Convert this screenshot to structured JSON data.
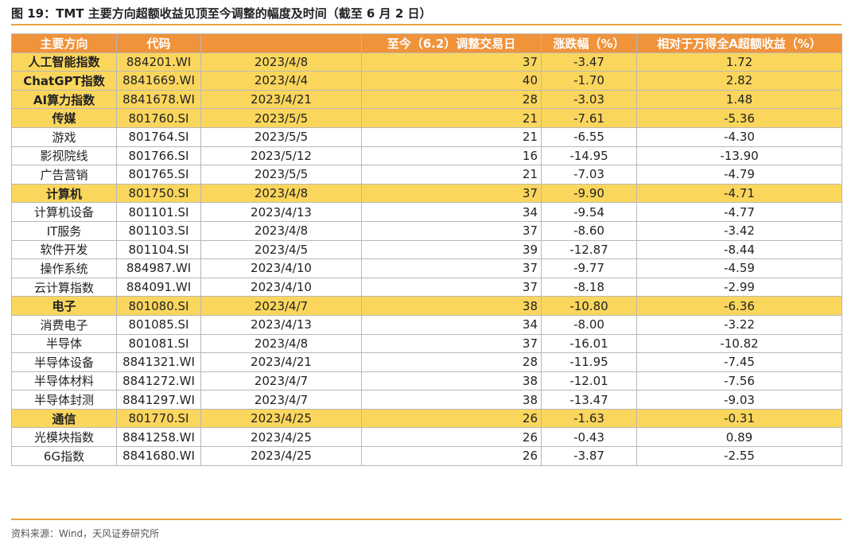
{
  "figure": {
    "title": "图 19：TMT 主要方向超额收益见顶至今调整的幅度及时间（截至 6 月 2 日）",
    "source": "资料来源：Wind，天风证券研究所"
  },
  "table": {
    "headers": [
      "主要方向",
      "代码",
      "",
      "至今（6.2）调整交易日",
      "涨跌幅（%）",
      "相对于万得全A超额收益（%）"
    ],
    "rows": [
      {
        "name": "人工智能指数",
        "code": "884201.WI",
        "date": "2023/4/8",
        "days": "37",
        "chg": "-3.47",
        "excess": "1.72",
        "group": true
      },
      {
        "name": "ChatGPT指数",
        "code": "8841669.WI",
        "date": "2023/4/4",
        "days": "40",
        "chg": "-1.70",
        "excess": "2.82",
        "group": true
      },
      {
        "name": "AI算力指数",
        "code": "8841678.WI",
        "date": "2023/4/21",
        "days": "28",
        "chg": "-3.03",
        "excess": "1.48",
        "group": true
      },
      {
        "name": "传媒",
        "code": "801760.SI",
        "date": "2023/5/5",
        "days": "21",
        "chg": "-7.61",
        "excess": "-5.36",
        "group": true
      },
      {
        "name": "游戏",
        "code": "801764.SI",
        "date": "2023/5/5",
        "days": "21",
        "chg": "-6.55",
        "excess": "-4.30",
        "group": false
      },
      {
        "name": "影视院线",
        "code": "801766.SI",
        "date": "2023/5/12",
        "days": "16",
        "chg": "-14.95",
        "excess": "-13.90",
        "group": false
      },
      {
        "name": "广告营销",
        "code": "801765.SI",
        "date": "2023/5/5",
        "days": "21",
        "chg": "-7.03",
        "excess": "-4.79",
        "group": false
      },
      {
        "name": "计算机",
        "code": "801750.SI",
        "date": "2023/4/8",
        "days": "37",
        "chg": "-9.90",
        "excess": "-4.71",
        "group": true
      },
      {
        "name": "计算机设备",
        "code": "801101.SI",
        "date": "2023/4/13",
        "days": "34",
        "chg": "-9.54",
        "excess": "-4.77",
        "group": false
      },
      {
        "name": "IT服务",
        "code": "801103.SI",
        "date": "2023/4/8",
        "days": "37",
        "chg": "-8.60",
        "excess": "-3.42",
        "group": false
      },
      {
        "name": "软件开发",
        "code": "801104.SI",
        "date": "2023/4/5",
        "days": "39",
        "chg": "-12.87",
        "excess": "-8.44",
        "group": false
      },
      {
        "name": "操作系统",
        "code": "884987.WI",
        "date": "2023/4/10",
        "days": "37",
        "chg": "-9.77",
        "excess": "-4.59",
        "group": false
      },
      {
        "name": "云计算指数",
        "code": "884091.WI",
        "date": "2023/4/10",
        "days": "37",
        "chg": "-8.18",
        "excess": "-2.99",
        "group": false
      },
      {
        "name": "电子",
        "code": "801080.SI",
        "date": "2023/4/7",
        "days": "38",
        "chg": "-10.80",
        "excess": "-6.36",
        "group": true
      },
      {
        "name": "消费电子",
        "code": "801085.SI",
        "date": "2023/4/13",
        "days": "34",
        "chg": "-8.00",
        "excess": "-3.22",
        "group": false
      },
      {
        "name": "半导体",
        "code": "801081.SI",
        "date": "2023/4/8",
        "days": "37",
        "chg": "-16.01",
        "excess": "-10.82",
        "group": false
      },
      {
        "name": "半导体设备",
        "code": "8841321.WI",
        "date": "2023/4/21",
        "days": "28",
        "chg": "-11.95",
        "excess": "-7.45",
        "group": false
      },
      {
        "name": "半导体材料",
        "code": "8841272.WI",
        "date": "2023/4/7",
        "days": "38",
        "chg": "-12.01",
        "excess": "-7.56",
        "group": false
      },
      {
        "name": "半导体封测",
        "code": "8841297.WI",
        "date": "2023/4/7",
        "days": "38",
        "chg": "-13.47",
        "excess": "-9.03",
        "group": false
      },
      {
        "name": "通信",
        "code": "801770.SI",
        "date": "2023/4/25",
        "days": "26",
        "chg": "-1.63",
        "excess": "-0.31",
        "group": true
      },
      {
        "name": "光模块指数",
        "code": "8841258.WI",
        "date": "2023/4/25",
        "days": "26",
        "chg": "-0.43",
        "excess": "0.89",
        "group": false
      },
      {
        "name": "6G指数",
        "code": "8841680.WI",
        "date": "2023/4/25",
        "days": "26",
        "chg": "-3.87",
        "excess": "-2.55",
        "group": false
      }
    ]
  },
  "colors": {
    "header_bg": "#f0933a",
    "group_row_bg": "#fbd65d",
    "rule": "#e8a33c"
  }
}
